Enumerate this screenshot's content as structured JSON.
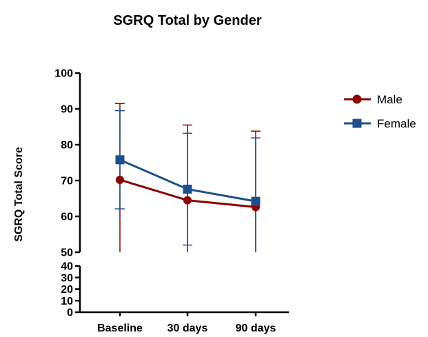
{
  "chart_data": {
    "type": "line",
    "title": "SGRQ Total by Gender",
    "xlabel": "",
    "ylabel": "SGRQ Total Score",
    "categories": [
      "Baseline",
      "30 days",
      "90 days"
    ],
    "y_axis_segments": [
      {
        "range": [
          0,
          40
        ],
        "ticks": [
          0,
          10,
          20,
          30,
          40
        ]
      },
      {
        "range": [
          50,
          100
        ],
        "ticks": [
          50,
          60,
          70,
          80,
          90,
          100
        ]
      }
    ],
    "ylim": [
      0,
      100
    ],
    "legend_position": "right",
    "grid": false,
    "series": [
      {
        "name": "Male",
        "color": "#8B0000",
        "marker": "circle",
        "values": [
          70.2,
          64.5,
          62.6
        ],
        "error_upper": [
          91.5,
          85.5,
          83.8
        ],
        "error_lower": [
          50,
          50,
          50
        ]
      },
      {
        "name": "Female",
        "color": "#1F4E8C",
        "marker": "square",
        "values": [
          75.8,
          67.6,
          64.2
        ],
        "error_upper": [
          89.5,
          83.2,
          81.9
        ],
        "error_lower": [
          62.1,
          52.0,
          50
        ]
      }
    ]
  }
}
